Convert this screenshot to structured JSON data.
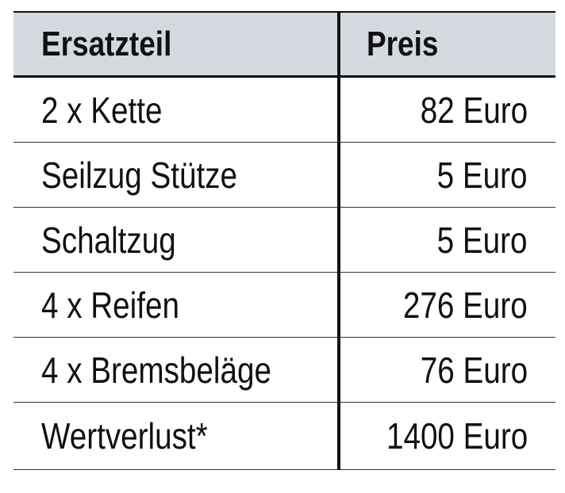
{
  "table": {
    "headers": [
      "Ersatzteil",
      "Preis"
    ],
    "rows": [
      [
        "2 x Kette",
        "82 Euro"
      ],
      [
        "Seilzug Stütze",
        "5 Euro"
      ],
      [
        "Schaltzug",
        "5 Euro"
      ],
      [
        "4 x Reifen",
        "276 Euro"
      ],
      [
        "4 x Bremsbeläge",
        "76 Euro"
      ],
      [
        "Wertverlust*",
        "1400 Euro"
      ]
    ],
    "header_bg": "#d4d9e0"
  }
}
